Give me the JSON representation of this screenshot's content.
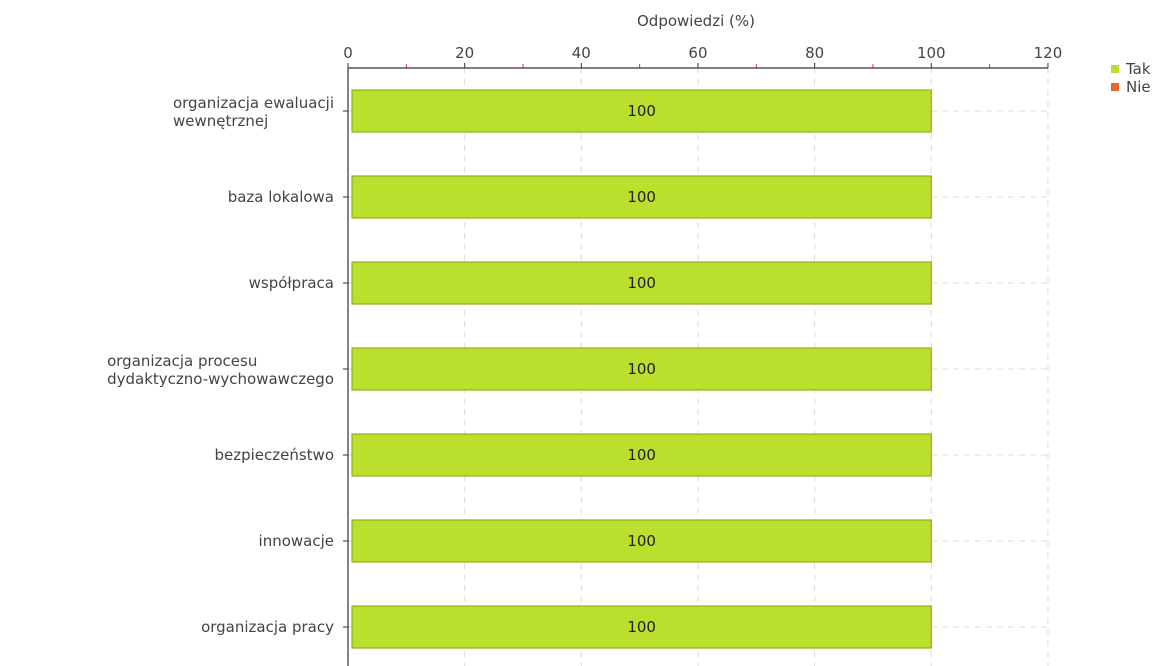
{
  "chart_data": {
    "type": "bar",
    "orientation": "horizontal",
    "xlabel": "Odpowiedzi (%)",
    "xlim": [
      0,
      120
    ],
    "ticks": [
      0,
      20,
      40,
      60,
      80,
      100,
      120
    ],
    "categories": [
      [
        "organizacja ewaluacji",
        "wewnętrznej"
      ],
      [
        "baza lokalowa"
      ],
      [
        "współpraca"
      ],
      [
        "organizacja procesu",
        "dydaktyczno-wychowawczego"
      ],
      [
        "bezpieczeństwo"
      ],
      [
        "innowacje"
      ],
      [
        "organizacja pracy"
      ]
    ],
    "series": [
      {
        "name": "Tak",
        "color": "#bbdf2d",
        "border": "#8fb01c",
        "values": [
          100,
          100,
          100,
          100,
          100,
          100,
          100
        ]
      },
      {
        "name": "Nie",
        "color": "#e4682c",
        "border": "#c0521e",
        "values": [
          0,
          0,
          0,
          0,
          0,
          0,
          0
        ]
      }
    ],
    "grid": true,
    "legend": "top-right",
    "axis_position": "top"
  }
}
